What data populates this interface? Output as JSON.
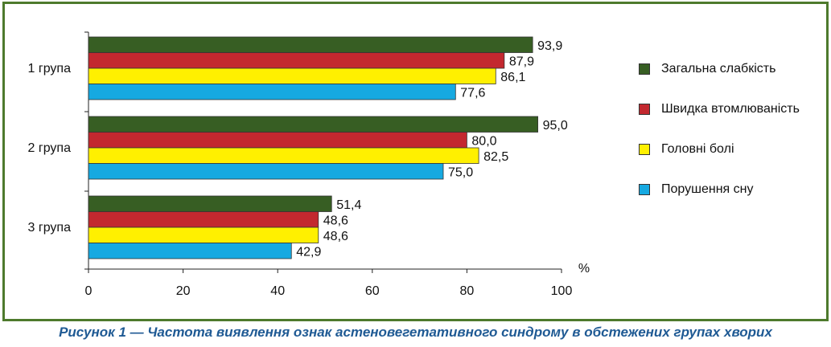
{
  "chart_data": {
    "type": "bar",
    "orientation": "horizontal",
    "categories": [
      "1 група",
      "2 група",
      "3 група"
    ],
    "series": [
      {
        "name": "Загальна слабкість",
        "color": "#375e23",
        "values": [
          93.9,
          95.0,
          51.4
        ],
        "labels": [
          "93,9",
          "95,0",
          "51,4"
        ]
      },
      {
        "name": "Швидка втомлюваність",
        "color": "#c3282f",
        "values": [
          87.9,
          80.0,
          48.6
        ],
        "labels": [
          "87,9",
          "80,0",
          "48,6"
        ]
      },
      {
        "name": "Головні болі",
        "color": "#fff000",
        "values": [
          86.1,
          82.5,
          48.6
        ],
        "labels": [
          "86,1",
          "82,5",
          "48,6"
        ]
      },
      {
        "name": "Порушення сну",
        "color": "#16a9e1",
        "values": [
          77.6,
          75.0,
          42.9
        ],
        "labels": [
          "77,6",
          "75,0",
          "42,9"
        ]
      }
    ],
    "xlim": [
      0,
      100
    ],
    "xticks": [
      0,
      20,
      40,
      60,
      80,
      100
    ],
    "unit_label": "%",
    "legend_position": "right",
    "grid": false
  },
  "caption": "Рисунок 1 — Частота виявлення ознак астеновегетативного синдрому в обстежених групах хворих"
}
